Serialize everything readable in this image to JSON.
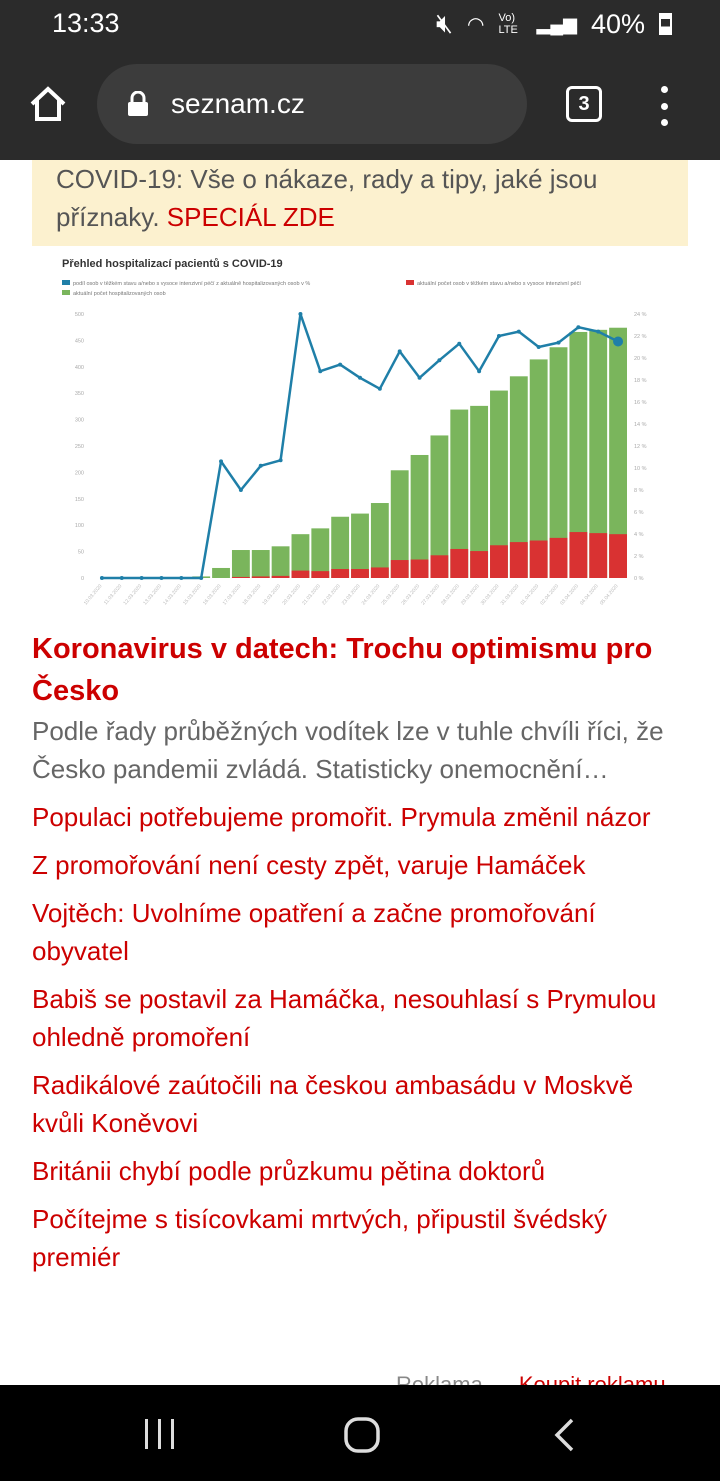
{
  "status": {
    "time": "13:33",
    "battery": "40%",
    "network": "Vo) LTE"
  },
  "browser": {
    "url": "seznam.cz",
    "tab_count": "3"
  },
  "banner": {
    "text": "COVID-19: Vše o nákaze, rady a tipy, jaké jsou příznaky.",
    "link": "SPECIÁL ZDE"
  },
  "chart_data": {
    "type": "bar",
    "title": "Přehled hospitalizací pacientů s COVID-19",
    "legend": [
      "podíl osob v těžkém stavu a/nebo s vysoce intenzivní péčí z aktuálně hospitalizovaných osob v %",
      "aktuální počet osob v těžkém stavu a/nebo s vysoce intenzivní péčí",
      "aktuální počet hospitalizovaných osob"
    ],
    "colors": {
      "line": "#1f7fa8",
      "red": "#d93232",
      "green": "#7ab55c"
    },
    "categories": [
      "10.03.2020",
      "11.03.2020",
      "12.03.2020",
      "13.03.2020",
      "14.03.2020",
      "15.03.2020",
      "16.03.2020",
      "17.03.2020",
      "18.03.2020",
      "19.03.2020",
      "20.03.2020",
      "21.03.2020",
      "22.03.2020",
      "23.03.2020",
      "24.03.2020",
      "25.03.2020",
      "26.03.2020",
      "27.03.2020",
      "28.03.2020",
      "29.03.2020",
      "30.03.2020",
      "31.03.2020",
      "01.04.2020",
      "02.04.2020",
      "03.04.2020",
      "04.04.2020",
      "05.04.2020"
    ],
    "series": [
      {
        "name": "hospitalized",
        "values": [
          0,
          0,
          0,
          0,
          0,
          3,
          19,
          53,
          53,
          60,
          83,
          94,
          116,
          122,
          142,
          204,
          233,
          270,
          319,
          326,
          355,
          382,
          414,
          437,
          466,
          470,
          474
        ]
      },
      {
        "name": "severe",
        "values": [
          0,
          0,
          0,
          0,
          0,
          0,
          0,
          2,
          3,
          4,
          14,
          13,
          17,
          17,
          20,
          34,
          35,
          43,
          55,
          51,
          62,
          68,
          71,
          76,
          87,
          85,
          83
        ]
      },
      {
        "name": "severe_pct",
        "values": [
          0,
          0,
          0,
          0,
          0,
          0,
          10.6,
          8,
          10.2,
          10.7,
          24,
          18.8,
          19.4,
          18.2,
          17.2,
          20.6,
          18.2,
          19.8,
          21.3,
          18.8,
          22,
          22.4,
          21,
          21.4,
          22.8,
          22.4,
          21.5
        ]
      }
    ],
    "ylim": [
      0,
      500
    ],
    "yticks": [
      "0",
      "50",
      "100",
      "150",
      "200",
      "250",
      "300",
      "350",
      "400",
      "450",
      "500"
    ],
    "y2lim": [
      0,
      24
    ],
    "y2ticks": [
      "0 %",
      "2 %",
      "4 %",
      "6 %",
      "8 %",
      "10 %",
      "12 %",
      "14 %",
      "16 %",
      "18 %",
      "20 %",
      "22 %",
      "24 %"
    ]
  },
  "article": {
    "headline": "Koronavirus v datech: Trochu optimismu pro Česko",
    "perex": "Podle řady průběžných vodítek lze v tuhle chvíli říci, že Česko pandemii zvládá. Statisticky onemocnění…"
  },
  "links": [
    "Populaci potřebujeme promořit. Prymula změnil názor",
    "Z promořování není cesty zpět, varuje Hamáček",
    "Vojtěch: Uvolníme opatření a začne promořování obyvatel",
    "Babiš se postavil za Hamáčka, nesouhlasí s Prymulou ohledně promoření",
    "Radikálové zaútočili na českou ambasádu v Moskvě kvůli Koněvovi",
    "Británii chybí podle průzkumu pětina doktorů",
    "Počítejme s tisícovkami mrtvých, připustil švédský premiér"
  ],
  "ads": {
    "label": "Reklama",
    "buy": "Koupit reklamu"
  }
}
